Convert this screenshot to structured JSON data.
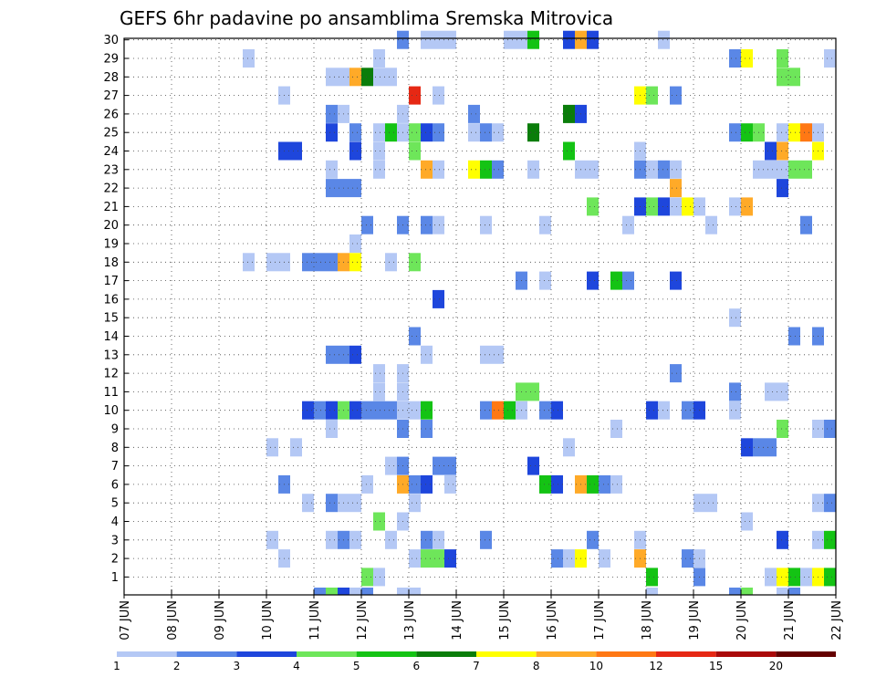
{
  "chart_data": {
    "type": "heatmap",
    "title": "GEFS 6hr padavine po ansamblima Sremska Mitrovica",
    "xlabel": "",
    "ylabel": "",
    "x_ticks": [
      "07 JUN",
      "08 JUN",
      "09 JUN",
      "10 JUN",
      "11 JUN",
      "12 JUN",
      "13 JUN",
      "14 JUN",
      "15 JUN",
      "16 JUN",
      "17 JUN",
      "18 JUN",
      "19 JUN",
      "20 JUN",
      "21 JUN",
      "22 JUN"
    ],
    "y_ticks": [
      "1",
      "2",
      "3",
      "4",
      "5",
      "6",
      "7",
      "8",
      "9",
      "10",
      "11",
      "12",
      "13",
      "14",
      "15",
      "16",
      "17",
      "18",
      "19",
      "20",
      "21",
      "22",
      "23",
      "24",
      "25",
      "26",
      "27",
      "28",
      "29",
      "30"
    ],
    "x_range_days": [
      7,
      22
    ],
    "y_range": [
      0,
      30
    ],
    "grid": true,
    "colorbar": {
      "labels": [
        "1",
        "2",
        "3",
        "4",
        "5",
        "6",
        "7",
        "8",
        "10",
        "12",
        "15",
        "20"
      ],
      "colors": [
        "#b4c8f5",
        "#5a87e6",
        "#1e46dc",
        "#6ee65a",
        "#14c314",
        "#0a7d0a",
        "#ffff00",
        "#ffaa28",
        "#ff7814",
        "#e62814",
        "#aa0a0a",
        "#640000"
      ]
    },
    "cells": [
      {
        "d": 9.5,
        "m": 29,
        "c": 0
      },
      {
        "d": 9.5,
        "m": 18,
        "c": 0
      },
      {
        "d": 10.0,
        "m": 18,
        "c": 0
      },
      {
        "d": 10.25,
        "m": 18,
        "c": 0
      },
      {
        "d": 10.0,
        "m": 8,
        "c": 0
      },
      {
        "d": 10.0,
        "m": 3,
        "c": 0
      },
      {
        "d": 10.5,
        "m": 8,
        "c": 0
      },
      {
        "d": 10.25,
        "m": 2,
        "c": 0
      },
      {
        "d": 10.25,
        "m": 27,
        "c": 0
      },
      {
        "d": 10.25,
        "m": 24,
        "c": 2
      },
      {
        "d": 10.5,
        "m": 24,
        "c": 2
      },
      {
        "d": 10.25,
        "m": 6,
        "c": 1
      },
      {
        "d": 10.75,
        "m": 18,
        "c": 1
      },
      {
        "d": 10.75,
        "m": 10,
        "c": 2
      },
      {
        "d": 10.75,
        "m": 5,
        "c": 0
      },
      {
        "d": 11.0,
        "m": 18,
        "c": 1
      },
      {
        "d": 11.25,
        "m": 18,
        "c": 1
      },
      {
        "d": 11.5,
        "m": 18,
        "c": 7
      },
      {
        "d": 11.75,
        "m": 18,
        "c": 6
      },
      {
        "d": 11.25,
        "m": 28,
        "c": 0
      },
      {
        "d": 11.5,
        "m": 28,
        "c": 0
      },
      {
        "d": 11.75,
        "m": 28,
        "c": 7
      },
      {
        "d": 12.0,
        "m": 28,
        "c": 5
      },
      {
        "d": 12.25,
        "m": 28,
        "c": 0
      },
      {
        "d": 12.5,
        "m": 28,
        "c": 0
      },
      {
        "d": 12.25,
        "m": 29,
        "c": 0
      },
      {
        "d": 11.25,
        "m": 26,
        "c": 1
      },
      {
        "d": 11.25,
        "m": 25,
        "c": 2
      },
      {
        "d": 11.5,
        "m": 26,
        "c": 0
      },
      {
        "d": 11.75,
        "m": 25,
        "c": 1
      },
      {
        "d": 11.75,
        "m": 24,
        "c": 2
      },
      {
        "d": 11.25,
        "m": 23,
        "c": 0
      },
      {
        "d": 11.25,
        "m": 22,
        "c": 1
      },
      {
        "d": 11.5,
        "m": 22,
        "c": 1
      },
      {
        "d": 11.75,
        "m": 22,
        "c": 1
      },
      {
        "d": 11.0,
        "m": 10,
        "c": 1
      },
      {
        "d": 11.25,
        "m": 10,
        "c": 2
      },
      {
        "d": 11.5,
        "m": 10,
        "c": 3
      },
      {
        "d": 11.75,
        "m": 10,
        "c": 2
      },
      {
        "d": 12.0,
        "m": 10,
        "c": 1
      },
      {
        "d": 12.25,
        "m": 10,
        "c": 1
      },
      {
        "d": 12.5,
        "m": 10,
        "c": 1
      },
      {
        "d": 12.75,
        "m": 10,
        "c": 0
      },
      {
        "d": 13.0,
        "m": 10,
        "c": 0
      },
      {
        "d": 13.25,
        "m": 10,
        "c": 4
      },
      {
        "d": 11.25,
        "m": 13,
        "c": 1
      },
      {
        "d": 11.5,
        "m": 13,
        "c": 1
      },
      {
        "d": 11.75,
        "m": 13,
        "c": 2
      },
      {
        "d": 11.25,
        "m": 9,
        "c": 0
      },
      {
        "d": 11.25,
        "m": 5,
        "c": 1
      },
      {
        "d": 11.5,
        "m": 5,
        "c": 0
      },
      {
        "d": 11.75,
        "m": 5,
        "c": 0
      },
      {
        "d": 11.25,
        "m": 3,
        "c": 0
      },
      {
        "d": 11.5,
        "m": 3,
        "c": 1
      },
      {
        "d": 11.75,
        "m": 3,
        "c": 0
      },
      {
        "d": 12.0,
        "m": 1,
        "c": 3
      },
      {
        "d": 12.25,
        "m": 1,
        "c": 0
      },
      {
        "d": 12.0,
        "m": 6,
        "c": 0
      },
      {
        "d": 12.25,
        "m": 12,
        "c": 0
      },
      {
        "d": 12.25,
        "m": 11,
        "c": 0
      },
      {
        "d": 12.0,
        "m": 20,
        "c": 1
      },
      {
        "d": 11.75,
        "m": 19,
        "c": 0
      },
      {
        "d": 12.25,
        "m": 25,
        "c": 0
      },
      {
        "d": 12.5,
        "m": 25,
        "c": 4
      },
      {
        "d": 12.25,
        "m": 24,
        "c": 0
      },
      {
        "d": 12.25,
        "m": 23,
        "c": 0
      },
      {
        "d": 12.25,
        "m": 4,
        "c": 3
      },
      {
        "d": 12.5,
        "m": 3,
        "c": 0
      },
      {
        "d": 12.5,
        "m": 18,
        "c": 0
      },
      {
        "d": 12.75,
        "m": 30,
        "c": 1
      },
      {
        "d": 12.75,
        "m": 25,
        "c": 0
      },
      {
        "d": 12.75,
        "m": 26,
        "c": 0
      },
      {
        "d": 13.0,
        "m": 27,
        "c": 9
      },
      {
        "d": 13.0,
        "m": 25,
        "c": 3
      },
      {
        "d": 13.0,
        "m": 24,
        "c": 3
      },
      {
        "d": 13.25,
        "m": 25,
        "c": 2
      },
      {
        "d": 13.5,
        "m": 25,
        "c": 1
      },
      {
        "d": 13.25,
        "m": 23,
        "c": 7
      },
      {
        "d": 13.5,
        "m": 23,
        "c": 0
      },
      {
        "d": 13.5,
        "m": 27,
        "c": 0
      },
      {
        "d": 13.25,
        "m": 30,
        "c": 0
      },
      {
        "d": 13.5,
        "m": 30,
        "c": 0
      },
      {
        "d": 13.75,
        "m": 30,
        "c": 0
      },
      {
        "d": 12.75,
        "m": 20,
        "c": 1
      },
      {
        "d": 13.25,
        "m": 20,
        "c": 1
      },
      {
        "d": 13.5,
        "m": 20,
        "c": 0
      },
      {
        "d": 13.0,
        "m": 18,
        "c": 3
      },
      {
        "d": 12.75,
        "m": 12,
        "c": 0
      },
      {
        "d": 12.75,
        "m": 11,
        "c": 0
      },
      {
        "d": 13.0,
        "m": 14,
        "c": 1
      },
      {
        "d": 13.25,
        "m": 13,
        "c": 0
      },
      {
        "d": 13.5,
        "m": 16,
        "c": 2
      },
      {
        "d": 12.75,
        "m": 9,
        "c": 1
      },
      {
        "d": 13.25,
        "m": 9,
        "c": 1
      },
      {
        "d": 12.5,
        "m": 7,
        "c": 0
      },
      {
        "d": 12.75,
        "m": 7,
        "c": 1
      },
      {
        "d": 13.5,
        "m": 7,
        "c": 1
      },
      {
        "d": 13.75,
        "m": 7,
        "c": 1
      },
      {
        "d": 12.75,
        "m": 6,
        "c": 7
      },
      {
        "d": 13.0,
        "m": 6,
        "c": 1
      },
      {
        "d": 13.25,
        "m": 6,
        "c": 2
      },
      {
        "d": 13.75,
        "m": 6,
        "c": 0
      },
      {
        "d": 13.0,
        "m": 5,
        "c": 0
      },
      {
        "d": 12.75,
        "m": 4,
        "c": 0
      },
      {
        "d": 13.25,
        "m": 3,
        "c": 1
      },
      {
        "d": 13.5,
        "m": 3,
        "c": 0
      },
      {
        "d": 13.0,
        "m": 2,
        "c": 0
      },
      {
        "d": 13.25,
        "m": 2,
        "c": 3
      },
      {
        "d": 13.5,
        "m": 2,
        "c": 3
      },
      {
        "d": 13.75,
        "m": 2,
        "c": 2
      },
      {
        "d": 14.25,
        "m": 25,
        "c": 0
      },
      {
        "d": 14.5,
        "m": 25,
        "c": 1
      },
      {
        "d": 14.75,
        "m": 25,
        "c": 0
      },
      {
        "d": 14.25,
        "m": 26,
        "c": 1
      },
      {
        "d": 14.25,
        "m": 23,
        "c": 6
      },
      {
        "d": 14.5,
        "m": 23,
        "c": 4
      },
      {
        "d": 14.75,
        "m": 23,
        "c": 1
      },
      {
        "d": 14.5,
        "m": 20,
        "c": 0
      },
      {
        "d": 14.5,
        "m": 13,
        "c": 0
      },
      {
        "d": 14.75,
        "m": 13,
        "c": 0
      },
      {
        "d": 14.5,
        "m": 10,
        "c": 1
      },
      {
        "d": 14.75,
        "m": 10,
        "c": 8
      },
      {
        "d": 15.0,
        "m": 10,
        "c": 4
      },
      {
        "d": 15.25,
        "m": 10,
        "c": 0
      },
      {
        "d": 15.25,
        "m": 11,
        "c": 3
      },
      {
        "d": 15.5,
        "m": 11,
        "c": 3
      },
      {
        "d": 14.5,
        "m": 3,
        "c": 1
      },
      {
        "d": 15.25,
        "m": 17,
        "c": 1
      },
      {
        "d": 15.5,
        "m": 23,
        "c": 0
      },
      {
        "d": 15.5,
        "m": 25,
        "c": 5
      },
      {
        "d": 15.0,
        "m": 30,
        "c": 0
      },
      {
        "d": 15.25,
        "m": 30,
        "c": 0
      },
      {
        "d": 15.5,
        "m": 30,
        "c": 4
      },
      {
        "d": 15.5,
        "m": 7,
        "c": 2
      },
      {
        "d": 15.75,
        "m": 6,
        "c": 4
      },
      {
        "d": 16.0,
        "m": 6,
        "c": 2
      },
      {
        "d": 15.75,
        "m": 10,
        "c": 1
      },
      {
        "d": 16.0,
        "m": 10,
        "c": 2
      },
      {
        "d": 15.75,
        "m": 17,
        "c": 0
      },
      {
        "d": 15.75,
        "m": 20,
        "c": 0
      },
      {
        "d": 16.25,
        "m": 8,
        "c": 0
      },
      {
        "d": 16.0,
        "m": 2,
        "c": 1
      },
      {
        "d": 16.25,
        "m": 2,
        "c": 0
      },
      {
        "d": 16.5,
        "m": 2,
        "c": 6
      },
      {
        "d": 16.25,
        "m": 24,
        "c": 4
      },
      {
        "d": 16.25,
        "m": 26,
        "c": 5
      },
      {
        "d": 16.5,
        "m": 26,
        "c": 2
      },
      {
        "d": 16.25,
        "m": 30,
        "c": 2
      },
      {
        "d": 16.5,
        "m": 30,
        "c": 7
      },
      {
        "d": 16.75,
        "m": 30,
        "c": 2
      },
      {
        "d": 16.5,
        "m": 23,
        "c": 0
      },
      {
        "d": 16.75,
        "m": 23,
        "c": 0
      },
      {
        "d": 16.75,
        "m": 21,
        "c": 3
      },
      {
        "d": 16.75,
        "m": 17,
        "c": 2
      },
      {
        "d": 16.5,
        "m": 6,
        "c": 7
      },
      {
        "d": 16.75,
        "m": 6,
        "c": 4
      },
      {
        "d": 17.0,
        "m": 6,
        "c": 1
      },
      {
        "d": 17.25,
        "m": 6,
        "c": 0
      },
      {
        "d": 16.75,
        "m": 3,
        "c": 1
      },
      {
        "d": 17.0,
        "m": 2,
        "c": 0
      },
      {
        "d": 17.25,
        "m": 17,
        "c": 4
      },
      {
        "d": 17.5,
        "m": 17,
        "c": 1
      },
      {
        "d": 17.25,
        "m": 9,
        "c": 0
      },
      {
        "d": 17.5,
        "m": 20,
        "c": 0
      },
      {
        "d": 17.75,
        "m": 27,
        "c": 6
      },
      {
        "d": 18.0,
        "m": 27,
        "c": 3
      },
      {
        "d": 17.75,
        "m": 23,
        "c": 1
      },
      {
        "d": 17.75,
        "m": 24,
        "c": 0
      },
      {
        "d": 17.75,
        "m": 21,
        "c": 2
      },
      {
        "d": 18.0,
        "m": 21,
        "c": 3
      },
      {
        "d": 18.25,
        "m": 21,
        "c": 2
      },
      {
        "d": 18.5,
        "m": 21,
        "c": 0
      },
      {
        "d": 18.75,
        "m": 21,
        "c": 6
      },
      {
        "d": 19.0,
        "m": 21,
        "c": 0
      },
      {
        "d": 18.0,
        "m": 23,
        "c": 0
      },
      {
        "d": 18.25,
        "m": 23,
        "c": 1
      },
      {
        "d": 18.5,
        "m": 23,
        "c": 0
      },
      {
        "d": 18.5,
        "m": 22,
        "c": 7
      },
      {
        "d": 18.5,
        "m": 27,
        "c": 1
      },
      {
        "d": 18.5,
        "m": 17,
        "c": 2
      },
      {
        "d": 18.5,
        "m": 12,
        "c": 1
      },
      {
        "d": 18.0,
        "m": 10,
        "c": 2
      },
      {
        "d": 18.25,
        "m": 10,
        "c": 0
      },
      {
        "d": 18.75,
        "m": 10,
        "c": 1
      },
      {
        "d": 19.0,
        "m": 10,
        "c": 2
      },
      {
        "d": 17.75,
        "m": 3,
        "c": 0
      },
      {
        "d": 17.75,
        "m": 2,
        "c": 7
      },
      {
        "d": 18.0,
        "m": 1,
        "c": 4
      },
      {
        "d": 18.75,
        "m": 2,
        "c": 1
      },
      {
        "d": 19.0,
        "m": 2,
        "c": 0
      },
      {
        "d": 19.0,
        "m": 1,
        "c": 1
      },
      {
        "d": 19.0,
        "m": 5,
        "c": 0
      },
      {
        "d": 19.25,
        "m": 5,
        "c": 0
      },
      {
        "d": 19.25,
        "m": 20,
        "c": 0
      },
      {
        "d": 18.25,
        "m": 30,
        "c": 0
      },
      {
        "d": 19.75,
        "m": 29,
        "c": 1
      },
      {
        "d": 20.0,
        "m": 29,
        "c": 6
      },
      {
        "d": 19.75,
        "m": 25,
        "c": 1
      },
      {
        "d": 20.0,
        "m": 25,
        "c": 4
      },
      {
        "d": 20.25,
        "m": 25,
        "c": 3
      },
      {
        "d": 19.75,
        "m": 21,
        "c": 0
      },
      {
        "d": 20.0,
        "m": 21,
        "c": 7
      },
      {
        "d": 19.75,
        "m": 15,
        "c": 0
      },
      {
        "d": 19.75,
        "m": 11,
        "c": 1
      },
      {
        "d": 19.75,
        "m": 10,
        "c": 0
      },
      {
        "d": 20.0,
        "m": 8,
        "c": 2
      },
      {
        "d": 20.25,
        "m": 8,
        "c": 1
      },
      {
        "d": 20.5,
        "m": 8,
        "c": 1
      },
      {
        "d": 20.0,
        "m": 4,
        "c": 0
      },
      {
        "d": 20.25,
        "m": 23,
        "c": 0
      },
      {
        "d": 20.5,
        "m": 24,
        "c": 2
      },
      {
        "d": 20.75,
        "m": 24,
        "c": 7
      },
      {
        "d": 20.75,
        "m": 22,
        "c": 2
      },
      {
        "d": 20.5,
        "m": 23,
        "c": 0
      },
      {
        "d": 20.75,
        "m": 28,
        "c": 3
      },
      {
        "d": 21.0,
        "m": 28,
        "c": 3
      },
      {
        "d": 20.75,
        "m": 29,
        "c": 3
      },
      {
        "d": 20.75,
        "m": 25,
        "c": 0
      },
      {
        "d": 20.5,
        "m": 11,
        "c": 0
      },
      {
        "d": 20.75,
        "m": 11,
        "c": 0
      },
      {
        "d": 20.75,
        "m": 9,
        "c": 3
      },
      {
        "d": 20.75,
        "m": 3,
        "c": 2
      },
      {
        "d": 20.5,
        "m": 1,
        "c": 0
      },
      {
        "d": 20.75,
        "m": 1,
        "c": 6
      },
      {
        "d": 21.0,
        "m": 1,
        "c": 4
      },
      {
        "d": 21.25,
        "m": 1,
        "c": 0
      },
      {
        "d": 20.75,
        "m": 23,
        "c": 0
      },
      {
        "d": 21.0,
        "m": 23,
        "c": 3
      },
      {
        "d": 21.25,
        "m": 23,
        "c": 3
      },
      {
        "d": 21.0,
        "m": 25,
        "c": 6
      },
      {
        "d": 21.25,
        "m": 25,
        "c": 8
      },
      {
        "d": 21.5,
        "m": 25,
        "c": 0
      },
      {
        "d": 21.5,
        "m": 24,
        "c": 6
      },
      {
        "d": 21.0,
        "m": 14,
        "c": 1
      },
      {
        "d": 21.5,
        "m": 14,
        "c": 1
      },
      {
        "d": 21.25,
        "m": 20,
        "c": 1
      },
      {
        "d": 21.5,
        "m": 9,
        "c": 0
      },
      {
        "d": 21.75,
        "m": 9,
        "c": 1
      },
      {
        "d": 21.5,
        "m": 5,
        "c": 0
      },
      {
        "d": 21.75,
        "m": 5,
        "c": 1
      },
      {
        "d": 21.5,
        "m": 3,
        "c": 0
      },
      {
        "d": 21.75,
        "m": 3,
        "c": 4
      },
      {
        "d": 21.5,
        "m": 1,
        "c": 6
      },
      {
        "d": 21.75,
        "m": 1,
        "c": 4
      },
      {
        "d": 21.75,
        "m": 29,
        "c": 0
      }
    ],
    "bottom_row": [
      {
        "d": 11.0,
        "c": 1
      },
      {
        "d": 11.25,
        "c": 3
      },
      {
        "d": 11.5,
        "c": 2
      },
      {
        "d": 11.75,
        "c": 0
      },
      {
        "d": 12.0,
        "c": 1
      },
      {
        "d": 12.75,
        "c": 0
      },
      {
        "d": 13.0,
        "c": 0
      },
      {
        "d": 18.0,
        "c": 0
      },
      {
        "d": 19.75,
        "c": 1
      },
      {
        "d": 20.0,
        "c": 3
      },
      {
        "d": 20.75,
        "c": 0
      },
      {
        "d": 21.0,
        "c": 1
      }
    ]
  }
}
